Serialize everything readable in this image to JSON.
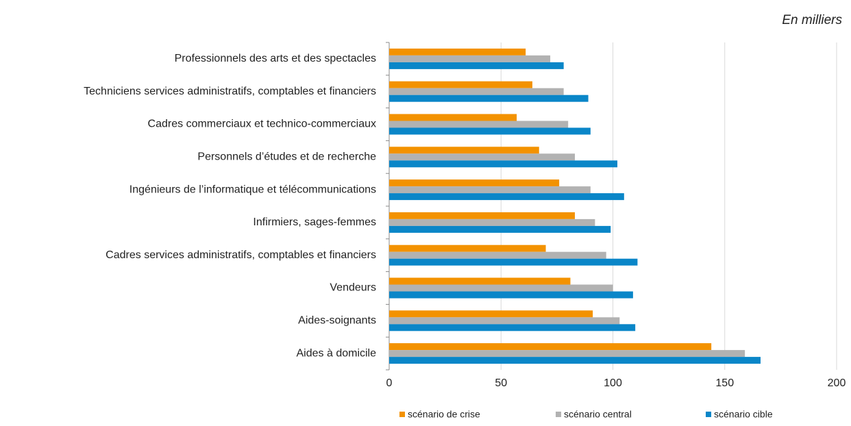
{
  "chart_data": {
    "type": "bar",
    "orientation": "horizontal",
    "subtitle": "En milliers",
    "categories": [
      "Professionnels des arts et des spectacles",
      "Techniciens services administratifs, comptables et financiers",
      "Cadres commerciaux et technico-commerciaux",
      "Personnels d’études et de recherche",
      "Ingénieurs de l’informatique et télécommunications",
      "Infirmiers, sages-femmes",
      "Cadres services administratifs, comptables et financiers",
      "Vendeurs",
      "Aides-soignants",
      "Aides à domicile"
    ],
    "series": [
      {
        "name": "scénario de crise",
        "color": "#f39200",
        "values": [
          61,
          64,
          57,
          67,
          76,
          83,
          70,
          81,
          91,
          144
        ]
      },
      {
        "name": "scénario central",
        "color": "#b2b2b2",
        "values": [
          72,
          78,
          80,
          83,
          90,
          92,
          97,
          100,
          103,
          159
        ]
      },
      {
        "name": "scénario cible",
        "color": "#0a86c8",
        "values": [
          78,
          89,
          90,
          102,
          105,
          99,
          111,
          109,
          110,
          166
        ]
      }
    ],
    "xlim": [
      0,
      200
    ],
    "xticks": [
      0,
      50,
      100,
      150,
      200
    ],
    "grid": true,
    "legend": "bottom"
  }
}
